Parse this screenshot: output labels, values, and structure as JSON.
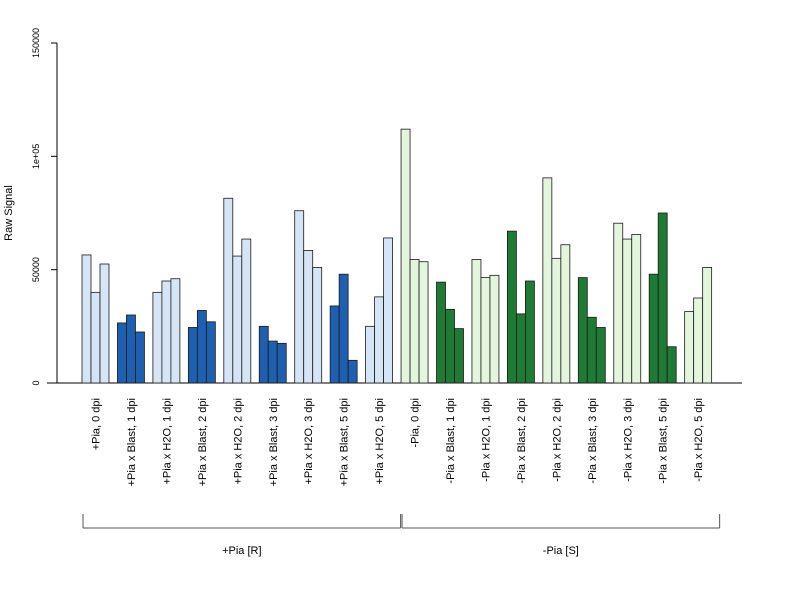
{
  "chart_data": {
    "type": "bar",
    "ylabel": "Raw Signal",
    "xlabel": "",
    "ylim": [
      0,
      150000
    ],
    "yticks": [
      "0",
      "50000",
      "1e+05",
      "150000"
    ],
    "ytick_values": [
      0,
      50000,
      100000,
      150000
    ],
    "colors": {
      "plus_light": "#d6e5f6",
      "plus_dark": "#1f5fb0",
      "minus_light": "#e3f5dc",
      "minus_dark": "#1f7a35"
    },
    "categories": [
      {
        "label": "+Pia, 0 dpi",
        "shade": "plus_light",
        "values": [
          56500,
          40000,
          52500
        ]
      },
      {
        "label": "+Pia x Blast, 1 dpi",
        "shade": "plus_dark",
        "values": [
          26500,
          30000,
          22500
        ]
      },
      {
        "label": "+Pia x H2O, 1 dpi",
        "shade": "plus_light",
        "values": [
          40000,
          45000,
          46000
        ]
      },
      {
        "label": "+Pia x Blast, 2 dpi",
        "shade": "plus_dark",
        "values": [
          24500,
          32000,
          27000
        ]
      },
      {
        "label": "+Pia x H2O, 2 dpi",
        "shade": "plus_light",
        "values": [
          81500,
          56000,
          63500
        ]
      },
      {
        "label": "+Pia x Blast, 3 dpi",
        "shade": "plus_dark",
        "values": [
          25000,
          18500,
          17500
        ]
      },
      {
        "label": "+Pia x H2O, 3 dpi",
        "shade": "plus_light",
        "values": [
          76000,
          58500,
          51000
        ]
      },
      {
        "label": "+Pia x Blast, 5 dpi",
        "shade": "plus_dark",
        "values": [
          34000,
          48000,
          10000
        ]
      },
      {
        "label": "+Pia x H2O, 5 dpi",
        "shade": "plus_light",
        "values": [
          25000,
          38000,
          64000
        ]
      },
      {
        "label": "-Pia, 0 dpi",
        "shade": "minus_light",
        "values": [
          112000,
          54500,
          53500
        ]
      },
      {
        "label": "-Pia x Blast, 1 dpi",
        "shade": "minus_dark",
        "values": [
          44500,
          32500,
          24000
        ]
      },
      {
        "label": "-Pia x H2O, 1 dpi",
        "shade": "minus_light",
        "values": [
          54500,
          46500,
          47500
        ]
      },
      {
        "label": "-Pia x Blast, 2 dpi",
        "shade": "minus_dark",
        "values": [
          67000,
          30500,
          45000
        ]
      },
      {
        "label": "-Pia x H2O, 2 dpi",
        "shade": "minus_light",
        "values": [
          90500,
          55000,
          61000
        ]
      },
      {
        "label": "-Pia x Blast, 3 dpi",
        "shade": "minus_dark",
        "values": [
          46500,
          29000,
          24500
        ]
      },
      {
        "label": "-Pia x H2O, 3 dpi",
        "shade": "minus_light",
        "values": [
          70500,
          63500,
          65500
        ]
      },
      {
        "label": "-Pia x Blast, 5 dpi",
        "shade": "minus_dark",
        "values": [
          48000,
          75000,
          16000
        ]
      },
      {
        "label": "-Pia x H2O, 5 dpi",
        "shade": "minus_light",
        "values": [
          31500,
          37500,
          51000
        ]
      }
    ],
    "groups": [
      {
        "label": "+Pia [R]",
        "from": 0,
        "to": 8
      },
      {
        "label": "-Pia [S]",
        "from": 9,
        "to": 17
      }
    ]
  }
}
